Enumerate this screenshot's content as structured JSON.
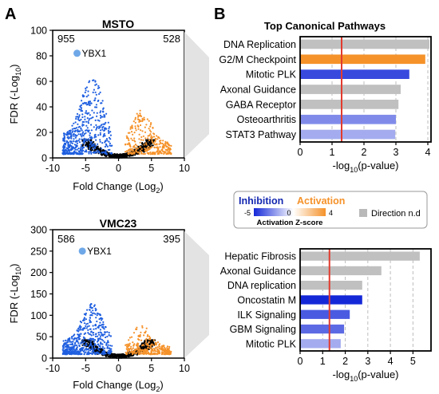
{
  "panels": {
    "a": "A",
    "b": "B"
  },
  "colors": {
    "down": "#1f5fe0",
    "up": "#f5922a",
    "gray": "#c0c0c0",
    "black": "#000000",
    "threshold": "#e23b2e"
  },
  "legend": {
    "inhibition": "Inhibition",
    "activation": "Activation",
    "min": "-5",
    "mid": "0",
    "max": "4",
    "scale_label": "Activation Z-score",
    "nd_label": "Direction n.d"
  },
  "chart_data": [
    {
      "type": "scatter",
      "title": "MSTO",
      "xlabel": "Fold Change (Log",
      "xlabel_sub": "2",
      "xlabel_end": ")",
      "ylabel": "FDR (-Log",
      "ylabel_sub": "10",
      "ylabel_end": ")",
      "xlim": [
        -10,
        10
      ],
      "ylim": [
        0,
        100
      ],
      "xticks": [
        "-10",
        "-5",
        "0",
        "5",
        "10"
      ],
      "yticks": [
        "0",
        "20",
        "40",
        "60",
        "80",
        "100"
      ],
      "count_down": "955",
      "count_up": "528",
      "highlight": {
        "label": "YBX1",
        "x": -6.3,
        "y": 82
      },
      "spread": {
        "down_max_y": 62,
        "up_max_y": 35
      }
    },
    {
      "type": "scatter",
      "title": "VMC23",
      "xlabel": "Fold Change (Log",
      "xlabel_sub": "2",
      "xlabel_end": ")",
      "ylabel": "FDR (-Log",
      "ylabel_sub": "10",
      "ylabel_end": ")",
      "xlim": [
        -10,
        10
      ],
      "ylim": [
        0,
        300
      ],
      "xticks": [
        "-10",
        "-5",
        "0",
        "5",
        "10"
      ],
      "yticks": [
        "0",
        "50",
        "100",
        "150",
        "200",
        "250",
        "300"
      ],
      "count_down": "586",
      "count_up": "395",
      "highlight": {
        "label": "YBX1",
        "x": -5.5,
        "y": 250
      },
      "spread": {
        "down_max_y": 120,
        "up_max_y": 70
      }
    },
    {
      "type": "bar",
      "title": "Top Canonical Pathways",
      "xlabel": "-log",
      "xlabel_sub": "10",
      "xlabel_end": "(p-value)",
      "xlim": [
        0,
        4.1
      ],
      "xticks": [
        "0",
        "1",
        "2",
        "3",
        "4"
      ],
      "threshold": 1.3,
      "categories": [
        "DNA Replication",
        "G2/M Checkpoint",
        "Mitotic PLK",
        "Axonal Guidance",
        "GABA Receptor",
        "Osteoarthritis",
        "STAT3 Pathway"
      ],
      "values": [
        4.05,
        3.92,
        3.42,
        3.15,
        3.08,
        3.0,
        2.98
      ],
      "zscores": [
        null,
        4,
        -4,
        null,
        null,
        -2,
        -1
      ]
    },
    {
      "type": "bar",
      "xlabel": "-log",
      "xlabel_sub": "10",
      "xlabel_end": "(p-value)",
      "xlim": [
        0,
        5.8
      ],
      "xticks": [
        "0",
        "1",
        "2",
        "3",
        "4",
        "5"
      ],
      "threshold": 1.3,
      "categories": [
        "Hepatic Fibrosis",
        "Axonal Guidance",
        "DNA replication",
        "Oncostatin M",
        "ILK Signaling",
        "GBM Signaling",
        "Mitotic PLK"
      ],
      "values": [
        5.3,
        3.6,
        2.75,
        2.75,
        2.2,
        1.95,
        1.8
      ],
      "zscores": [
        null,
        null,
        null,
        -5,
        -3.5,
        -3,
        -1
      ]
    }
  ]
}
